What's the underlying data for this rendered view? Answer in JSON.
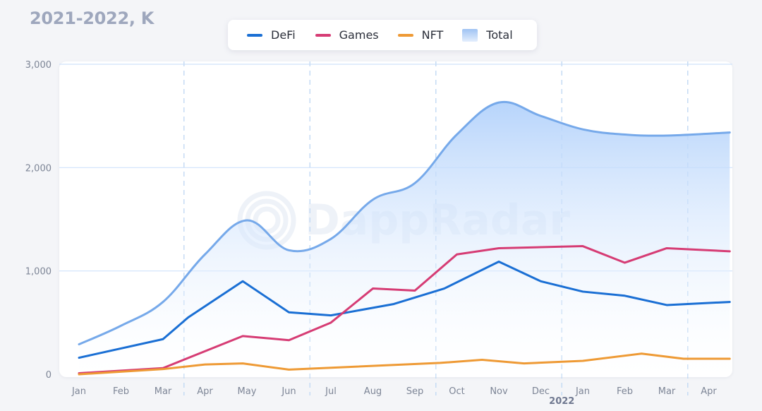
{
  "title": "2021-2022, K",
  "legend": {
    "defi": "DeFi",
    "games": "Games",
    "nft": "NFT",
    "total": "Total"
  },
  "watermark": "DappRadar",
  "colors": {
    "defi": "#1a6fd4",
    "games": "#d63c74",
    "nft": "#ee9a35",
    "total_line": "#76a9ea",
    "total_fill_top": "#b3d2fb",
    "grid": "#cfe2fb",
    "divider": "#c5dbf4"
  },
  "chart_data": {
    "type": "line",
    "categories": [
      "Jan",
      "Feb",
      "Mar",
      "Apr",
      "May",
      "Jun",
      "Jul",
      "Aug",
      "Sep",
      "Oct",
      "Nov",
      "Dec",
      "Jan",
      "Feb",
      "Mar",
      "Apr"
    ],
    "year_label": {
      "text": "2022",
      "under_index": 11.5
    },
    "ylim": [
      0,
      3000
    ],
    "yticks": [
      0,
      1000,
      2000,
      3000
    ],
    "ytick_labels": [
      "0",
      "1,000",
      "2,000",
      "3,000"
    ],
    "grid": true,
    "series": [
      {
        "name": "Total",
        "type": "area",
        "x": [
          0,
          1,
          2,
          3,
          4,
          5,
          6,
          7,
          8,
          9,
          10,
          11,
          12,
          13,
          14,
          15.5
        ],
        "values": [
          290,
          470,
          700,
          1160,
          1490,
          1200,
          1310,
          1690,
          1850,
          2320,
          2630,
          2500,
          2370,
          2320,
          2310,
          2340
        ]
      },
      {
        "name": "DeFi",
        "type": "line",
        "x": [
          0,
          2,
          2.6,
          3.9,
          5,
          6,
          7.5,
          8.7,
          10,
          11,
          12,
          13,
          14,
          15.5
        ],
        "values": [
          160,
          340,
          550,
          900,
          600,
          570,
          680,
          830,
          1090,
          900,
          800,
          760,
          670,
          700
        ]
      },
      {
        "name": "Games",
        "type": "line",
        "x": [
          0,
          2,
          3.9,
          5,
          6,
          7,
          8,
          9,
          10,
          11,
          12,
          13,
          14,
          15.5
        ],
        "values": [
          10,
          60,
          370,
          330,
          500,
          830,
          810,
          1160,
          1220,
          1230,
          1240,
          1080,
          1220,
          1190
        ]
      },
      {
        "name": "NFT",
        "type": "line",
        "x": [
          0,
          2,
          3,
          3.9,
          5,
          8.6,
          9.6,
          10.6,
          12,
          13.4,
          14.4,
          15.5
        ],
        "values": [
          0,
          50,
          95,
          105,
          45,
          110,
          140,
          105,
          130,
          200,
          150,
          150
        ]
      }
    ]
  }
}
